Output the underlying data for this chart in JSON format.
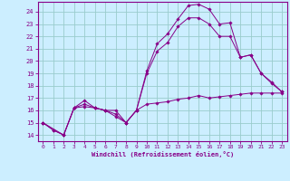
{
  "xlabel": "Windchill (Refroidissement éolien,°C)",
  "bg_color": "#cceeff",
  "line_color": "#880088",
  "grid_color": "#99cccc",
  "xlim": [
    -0.5,
    23.5
  ],
  "ylim": [
    13.5,
    24.8
  ],
  "yticks": [
    14,
    15,
    16,
    17,
    18,
    19,
    20,
    21,
    22,
    23,
    24
  ],
  "xticks": [
    0,
    1,
    2,
    3,
    4,
    5,
    6,
    7,
    8,
    9,
    10,
    11,
    12,
    13,
    14,
    15,
    16,
    17,
    18,
    19,
    20,
    21,
    22,
    23
  ],
  "lines": [
    {
      "x": [
        0,
        1,
        2,
        3,
        4,
        5,
        6,
        7,
        8,
        9,
        10,
        11,
        12,
        13,
        14,
        15,
        16,
        17,
        18,
        19,
        20,
        21,
        22,
        23
      ],
      "y": [
        15.0,
        14.4,
        14.0,
        16.2,
        16.5,
        16.2,
        16.0,
        15.7,
        15.0,
        16.0,
        16.5,
        16.6,
        16.7,
        16.9,
        17.0,
        17.2,
        17.0,
        17.1,
        17.2,
        17.3,
        17.4,
        17.4,
        17.4,
        17.4
      ]
    },
    {
      "x": [
        0,
        1,
        2,
        3,
        4,
        5,
        6,
        7,
        8,
        9,
        10,
        11,
        12,
        13,
        14,
        15,
        16,
        17,
        18,
        19,
        20,
        21,
        22,
        23
      ],
      "y": [
        15.0,
        14.4,
        14.0,
        16.2,
        16.8,
        16.2,
        16.0,
        15.5,
        15.0,
        16.0,
        19.2,
        21.4,
        22.2,
        23.4,
        24.5,
        24.6,
        24.2,
        23.0,
        23.1,
        20.3,
        20.5,
        19.0,
        18.3,
        17.5
      ]
    },
    {
      "x": [
        0,
        2,
        3,
        4,
        5,
        6,
        7,
        8,
        9,
        10,
        11,
        12,
        13,
        14,
        15,
        16,
        17,
        18,
        19,
        20,
        21,
        22,
        23
      ],
      "y": [
        15.0,
        14.0,
        16.2,
        16.3,
        16.2,
        16.0,
        16.0,
        15.0,
        16.0,
        19.0,
        20.8,
        21.5,
        22.8,
        23.5,
        23.5,
        23.0,
        22.0,
        22.0,
        20.3,
        20.5,
        19.0,
        18.2,
        17.5
      ]
    }
  ]
}
